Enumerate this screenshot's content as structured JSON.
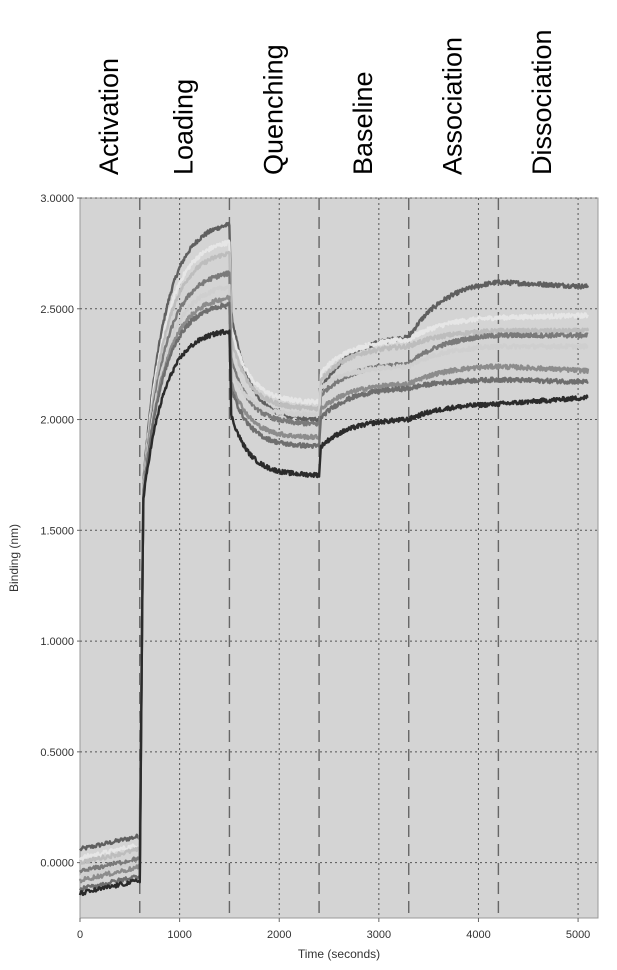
{
  "chart_data": {
    "type": "line",
    "title": "",
    "xlabel": "Time (seconds)",
    "ylabel": "Binding (nm)",
    "xlim": [
      0,
      5200
    ],
    "ylim": [
      -0.25,
      3.0
    ],
    "x_ticks": [
      0,
      1000,
      2000,
      3000,
      4000,
      5000
    ],
    "x_tick_labels": [
      "0",
      "1000",
      "2000",
      "3000",
      "4000",
      "5000"
    ],
    "y_ticks": [
      0,
      0.5,
      1.0,
      1.5,
      2.0,
      2.5,
      3.0
    ],
    "y_tick_labels": [
      "0.0000",
      "0.5000",
      "1.0000",
      "1.5000",
      "2.0000",
      "2.5000",
      "3.0000"
    ],
    "grid": true,
    "background": "#d4d4d4",
    "step_boundaries": [
      600,
      1500,
      2400,
      3300,
      4200
    ],
    "steps": [
      {
        "label": "Activation",
        "start": 0,
        "end": 600
      },
      {
        "label": "Loading",
        "start": 600,
        "end": 1500
      },
      {
        "label": "Quenching",
        "start": 1500,
        "end": 2400
      },
      {
        "label": "Baseline",
        "start": 2400,
        "end": 3300
      },
      {
        "label": "Association",
        "start": 3300,
        "end": 4200
      },
      {
        "label": "Dissociation",
        "start": 4200,
        "end": 5100
      }
    ],
    "series_colors": [
      "#5f5f5f",
      "#e6e6e6",
      "#bdbdbd",
      "#7a7a7a",
      "#cfcfcf",
      "#8c8c8c",
      "#6e6e6e",
      "#2b2b2b"
    ],
    "series": [
      {
        "values_at_step_ends": [
          0.12,
          2.88,
          2.0,
          2.37,
          2.62,
          2.6
        ]
      },
      {
        "values_at_step_ends": [
          0.08,
          2.8,
          2.08,
          2.36,
          2.46,
          2.47
        ]
      },
      {
        "values_at_step_ends": [
          0.06,
          2.75,
          2.05,
          2.33,
          2.4,
          2.4
        ]
      },
      {
        "values_at_step_ends": [
          0.02,
          2.66,
          1.98,
          2.25,
          2.38,
          2.38
        ]
      },
      {
        "values_at_step_ends": [
          0.0,
          2.6,
          2.02,
          2.24,
          2.33,
          2.33
        ]
      },
      {
        "values_at_step_ends": [
          -0.02,
          2.55,
          1.92,
          2.16,
          2.24,
          2.22
        ]
      },
      {
        "values_at_step_ends": [
          -0.06,
          2.52,
          1.88,
          2.14,
          2.18,
          2.17
        ]
      },
      {
        "values_at_step_ends": [
          -0.08,
          2.4,
          1.75,
          2.0,
          2.07,
          2.1
        ]
      }
    ]
  }
}
